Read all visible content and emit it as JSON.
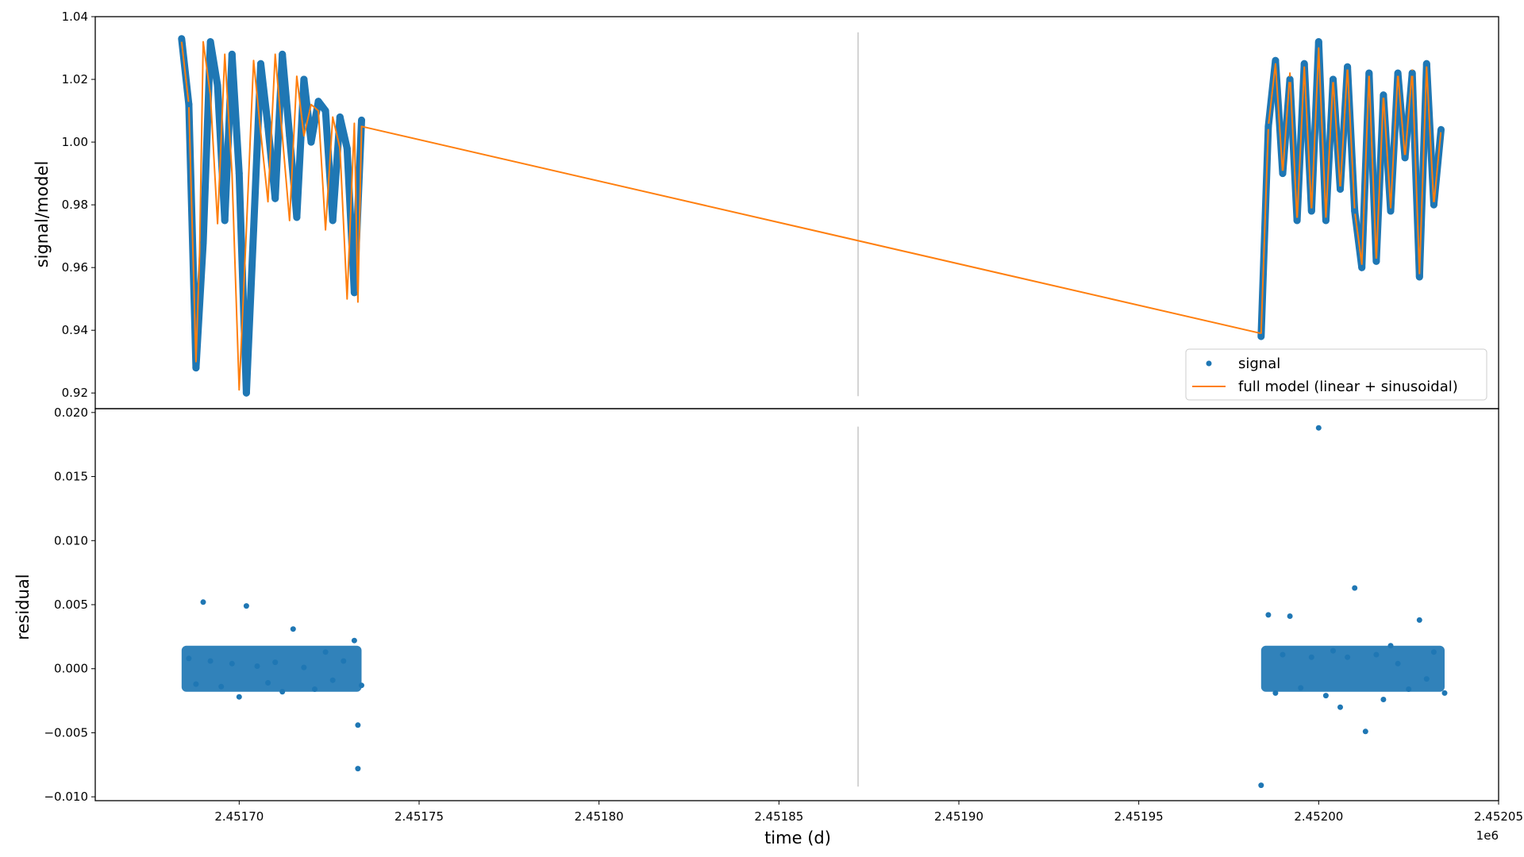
{
  "chart_data": [
    {
      "type": "scatter",
      "panel": "top",
      "ylabel": "signal/model",
      "xlabel": "",
      "xlim": [
        2.45166,
        2.45205
      ],
      "ylim": [
        0.915,
        1.04
      ],
      "yticks": [
        0.92,
        0.94,
        0.96,
        0.98,
        1.0,
        1.02,
        1.04
      ],
      "ytick_labels": [
        "0.92",
        "0.94",
        "0.96",
        "0.98",
        "1.00",
        "1.02",
        "1.04"
      ],
      "legend": {
        "placement": "lower-right",
        "entries": [
          {
            "label": "signal",
            "marker": "dot",
            "color": "#1f77b4"
          },
          {
            "label": "full model (linear + sinusoidal)",
            "marker": "line",
            "color": "#ff7f0e"
          }
        ]
      },
      "vline": {
        "x": 2.451872,
        "y_range": [
          0.919,
          1.035
        ],
        "color": "#d3d3d3"
      },
      "segments": [
        {
          "name": "segment-1",
          "x_start": 2.451684,
          "x_end": 2.451734
        },
        {
          "name": "segment-2",
          "x_start": 2.451984,
          "x_end": 2.452035
        }
      ],
      "series": [
        {
          "name": "signal",
          "color": "#1f77b4",
          "x": [
            2.451684,
            2.451686,
            2.451688,
            2.45169,
            2.451692,
            2.451694,
            2.451696,
            2.451698,
            2.4517,
            2.451702,
            2.451704,
            2.451706,
            2.451708,
            2.45171,
            2.451712,
            2.451714,
            2.451716,
            2.451718,
            2.45172,
            2.451722,
            2.451724,
            2.451726,
            2.451728,
            2.45173,
            2.451732,
            2.451734,
            2.451984,
            2.451986,
            2.451988,
            2.45199,
            2.451992,
            2.451994,
            2.451996,
            2.451998,
            2.452,
            2.452002,
            2.452004,
            2.452006,
            2.452008,
            2.45201,
            2.452012,
            2.452014,
            2.452016,
            2.452018,
            2.45202,
            2.452022,
            2.452024,
            2.452026,
            2.452028,
            2.45203,
            2.452032,
            2.452034
          ],
          "y": [
            1.033,
            1.012,
            0.928,
            0.968,
            1.032,
            1.018,
            0.975,
            1.028,
            0.99,
            0.92,
            0.972,
            1.025,
            1.005,
            0.982,
            1.028,
            1.002,
            0.976,
            1.02,
            1.0,
            1.013,
            1.01,
            0.975,
            1.008,
            0.998,
            0.952,
            1.007,
            0.938,
            1.005,
            1.026,
            0.99,
            1.02,
            0.975,
            1.025,
            0.978,
            1.032,
            0.975,
            1.02,
            0.985,
            1.024,
            0.978,
            0.96,
            1.022,
            0.962,
            1.015,
            0.978,
            1.022,
            0.995,
            1.022,
            0.957,
            1.025,
            0.98,
            1.004
          ]
        },
        {
          "name": "full model (linear + sinusoidal)",
          "color": "#ff7f0e",
          "x": [
            2.451684,
            2.451686,
            2.451688,
            2.451689,
            2.45169,
            2.451692,
            2.451694,
            2.451696,
            2.451698,
            2.4517,
            2.451702,
            2.451704,
            2.451706,
            2.451708,
            2.45171,
            2.451712,
            2.451714,
            2.451716,
            2.451718,
            2.45172,
            2.451722,
            2.451724,
            2.451726,
            2.451728,
            2.45173,
            2.451732,
            2.451733,
            2.451734,
            2.451984,
            2.451986,
            2.451988,
            2.45199,
            2.451992,
            2.451994,
            2.451996,
            2.451998,
            2.452,
            2.452002,
            2.452004,
            2.452006,
            2.452008,
            2.45201,
            2.452012,
            2.452014,
            2.452016,
            2.452018,
            2.45202,
            2.452022,
            2.452024,
            2.452026,
            2.452028,
            2.45203,
            2.452032,
            2.452034
          ],
          "y": [
            1.032,
            1.012,
            0.93,
            0.965,
            1.032,
            1.015,
            0.974,
            1.028,
            0.99,
            0.921,
            0.972,
            1.026,
            1.003,
            0.981,
            1.028,
            1.002,
            0.975,
            1.021,
            1.002,
            1.012,
            1.01,
            0.972,
            1.008,
            0.998,
            0.95,
            1.006,
            0.949,
            1.005,
            0.939,
            1.005,
            1.025,
            0.99,
            1.022,
            0.975,
            1.024,
            0.978,
            1.03,
            0.976,
            1.02,
            0.985,
            1.024,
            0.978,
            0.961,
            1.022,
            0.962,
            1.015,
            0.979,
            1.022,
            0.995,
            1.023,
            0.958,
            1.024,
            0.98,
            1.004
          ]
        }
      ]
    },
    {
      "type": "scatter",
      "panel": "bottom",
      "ylabel": "residual",
      "xlabel": "time (d)",
      "x_offset_label": "1e6",
      "xlim": [
        2.45166,
        2.45205
      ],
      "ylim": [
        -0.0103,
        0.0203
      ],
      "xticks": [
        2.4517,
        2.45175,
        2.4518,
        2.45185,
        2.4519,
        2.45195,
        2.452,
        2.45205
      ],
      "xtick_labels": [
        "2.45170",
        "2.45175",
        "2.45180",
        "2.45185",
        "2.45190",
        "2.45195",
        "2.45200",
        "2.45205"
      ],
      "yticks": [
        -0.01,
        -0.005,
        0.0,
        0.005,
        0.01,
        0.015,
        0.02
      ],
      "ytick_labels": [
        "−0.010",
        "−0.005",
        "0.000",
        "0.005",
        "0.010",
        "0.015",
        "0.020"
      ],
      "vline": {
        "x": 2.451872,
        "y_range": [
          -0.0092,
          0.0189
        ],
        "color": "#d3d3d3"
      },
      "series": [
        {
          "name": "",
          "color": "#1f77b4",
          "x": [
            2.451686,
            2.451688,
            2.45169,
            2.451692,
            2.451695,
            2.451698,
            2.4517,
            2.451702,
            2.451705,
            2.451708,
            2.45171,
            2.451712,
            2.451715,
            2.451718,
            2.451721,
            2.451724,
            2.451726,
            2.451729,
            2.451732,
            2.451734,
            2.451733,
            2.451733,
            2.451984,
            2.451986,
            2.451988,
            2.45199,
            2.451992,
            2.451995,
            2.451998,
            2.452,
            2.452002,
            2.452004,
            2.452006,
            2.452008,
            2.45201,
            2.452013,
            2.452016,
            2.452018,
            2.45202,
            2.452022,
            2.452025,
            2.452028,
            2.45203,
            2.452032,
            2.452035
          ],
          "y": [
            0.0008,
            -0.0012,
            0.0052,
            0.0006,
            -0.0014,
            0.0004,
            -0.0022,
            0.0049,
            0.0002,
            -0.0011,
            0.0005,
            -0.0018,
            0.0031,
            0.0001,
            -0.0016,
            0.0013,
            -0.0009,
            0.0006,
            0.0022,
            -0.0013,
            -0.0044,
            -0.0078,
            -0.0091,
            0.0042,
            -0.0019,
            0.0011,
            0.0041,
            -0.0015,
            0.0009,
            0.0188,
            -0.0021,
            0.0014,
            -0.003,
            0.0009,
            0.0063,
            -0.0049,
            0.0011,
            -0.0024,
            0.0018,
            0.0004,
            -0.0016,
            0.0038,
            -0.0008,
            0.0013,
            -0.0019
          ]
        }
      ]
    }
  ]
}
